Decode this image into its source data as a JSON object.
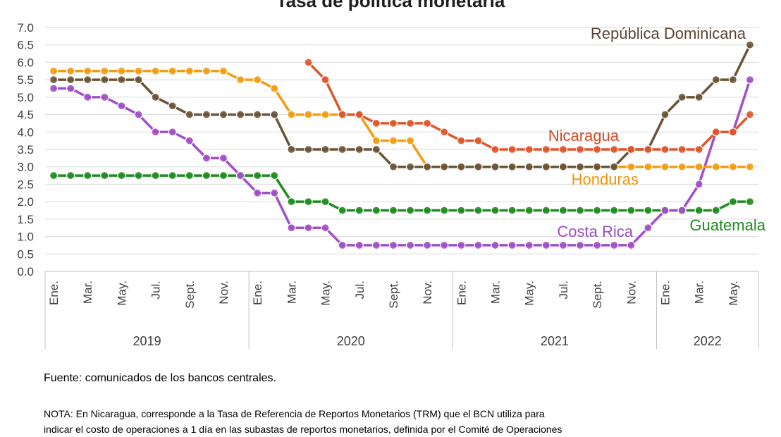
{
  "chart_data": {
    "type": "line",
    "title": "Tasa de política monetaria",
    "y_ticks": [
      "7.0",
      "6.5",
      "6.0",
      "5.5",
      "5.0",
      "4.5",
      "4.0",
      "3.5",
      "3.0",
      "2.5",
      "2.0",
      "1.5",
      "1.0",
      "0.5",
      "0.0"
    ],
    "ylim": [
      0,
      7
    ],
    "grid": true,
    "month_labels": [
      "Ene.",
      "Mar.",
      "May.",
      "Jul.",
      "Sept.",
      "Nov.",
      "Ene.",
      "Mar.",
      "May.",
      "Jul.",
      "Sept.",
      "Nov.",
      "Ene.",
      "Mar.",
      "May.",
      "Jul.",
      "Sept.",
      "Nov.",
      "Ene.",
      "Mar.",
      "May."
    ],
    "years": [
      "2019",
      "2020",
      "2021",
      "2022"
    ],
    "x": [
      "2019-01",
      "2019-02",
      "2019-03",
      "2019-04",
      "2019-05",
      "2019-06",
      "2019-07",
      "2019-08",
      "2019-09",
      "2019-10",
      "2019-11",
      "2019-12",
      "2020-01",
      "2020-02",
      "2020-03",
      "2020-04",
      "2020-05",
      "2020-06",
      "2020-07",
      "2020-08",
      "2020-09",
      "2020-10",
      "2020-11",
      "2020-12",
      "2021-01",
      "2021-02",
      "2021-03",
      "2021-04",
      "2021-05",
      "2021-06",
      "2021-07",
      "2021-08",
      "2021-09",
      "2021-10",
      "2021-11",
      "2021-12",
      "2022-01",
      "2022-02",
      "2022-03",
      "2022-04",
      "2022-05",
      "2022-06"
    ],
    "series": [
      {
        "name": "Guatemala",
        "color": "#1e8c1e",
        "label_color": "#1e8c1e",
        "values": [
          2.75,
          2.75,
          2.75,
          2.75,
          2.75,
          2.75,
          2.75,
          2.75,
          2.75,
          2.75,
          2.75,
          2.75,
          2.75,
          2.75,
          2.0,
          2.0,
          2.0,
          1.75,
          1.75,
          1.75,
          1.75,
          1.75,
          1.75,
          1.75,
          1.75,
          1.75,
          1.75,
          1.75,
          1.75,
          1.75,
          1.75,
          1.75,
          1.75,
          1.75,
          1.75,
          1.75,
          1.75,
          1.75,
          1.75,
          1.75,
          2.0,
          2.0
        ]
      },
      {
        "name": "Costa Rica",
        "color": "#a04fc8",
        "label_color": "#9a4fc0",
        "values": [
          5.25,
          5.25,
          5.0,
          5.0,
          4.75,
          4.5,
          4.0,
          4.0,
          3.75,
          3.25,
          3.25,
          2.75,
          2.25,
          2.25,
          1.25,
          1.25,
          1.25,
          0.75,
          0.75,
          0.75,
          0.75,
          0.75,
          0.75,
          0.75,
          0.75,
          0.75,
          0.75,
          0.75,
          0.75,
          0.75,
          0.75,
          0.75,
          0.75,
          0.75,
          0.75,
          1.25,
          1.75,
          1.75,
          2.5,
          4.0,
          4.0,
          5.5
        ]
      },
      {
        "name": "Honduras",
        "color": "#f39c12",
        "label_color": "#f0940a",
        "values": [
          5.75,
          5.75,
          5.75,
          5.75,
          5.75,
          5.75,
          5.75,
          5.75,
          5.75,
          5.75,
          5.75,
          5.5,
          5.5,
          5.25,
          4.5,
          4.5,
          4.5,
          4.5,
          4.5,
          3.75,
          3.75,
          3.75,
          3.0,
          3.0,
          3.0,
          3.0,
          3.0,
          3.0,
          3.0,
          3.0,
          3.0,
          3.0,
          3.0,
          3.0,
          3.0,
          3.0,
          3.0,
          3.0,
          3.0,
          3.0,
          3.0,
          3.0
        ]
      },
      {
        "name": "República Dominicana",
        "color": "#6b5436",
        "label_color": "#5a4530",
        "values": [
          5.5,
          5.5,
          5.5,
          5.5,
          5.5,
          5.5,
          5.0,
          4.75,
          4.5,
          4.5,
          4.5,
          4.5,
          4.5,
          4.5,
          3.5,
          3.5,
          3.5,
          3.5,
          3.5,
          3.5,
          3.0,
          3.0,
          3.0,
          3.0,
          3.0,
          3.0,
          3.0,
          3.0,
          3.0,
          3.0,
          3.0,
          3.0,
          3.0,
          3.0,
          3.5,
          3.5,
          4.5,
          5.0,
          5.0,
          5.5,
          5.5,
          6.5
        ]
      },
      {
        "name": "Nicaragua",
        "color": "#e0552a",
        "label_color": "#d9471e",
        "values": [
          null,
          null,
          null,
          null,
          null,
          null,
          null,
          null,
          null,
          null,
          null,
          null,
          null,
          null,
          null,
          6.0,
          5.5,
          4.5,
          4.5,
          4.25,
          4.25,
          4.25,
          4.25,
          4.0,
          3.75,
          3.75,
          3.5,
          3.5,
          3.5,
          3.5,
          3.5,
          3.5,
          3.5,
          3.5,
          3.5,
          3.5,
          3.5,
          3.5,
          3.5,
          4.0,
          4.0,
          4.5
        ]
      }
    ]
  },
  "source": "Fuente: comunicados de los bancos centrales.",
  "note_lines": [
    "NOTA: En Nicaragua, corresponde a la Tasa de Referencia de Reportos Monetarios (TRM) que el BCN utiliza para",
    "indicar el costo de operaciones a 1 día en las subastas de reportos monetarios, definida por el Comité de Operaciones"
  ]
}
